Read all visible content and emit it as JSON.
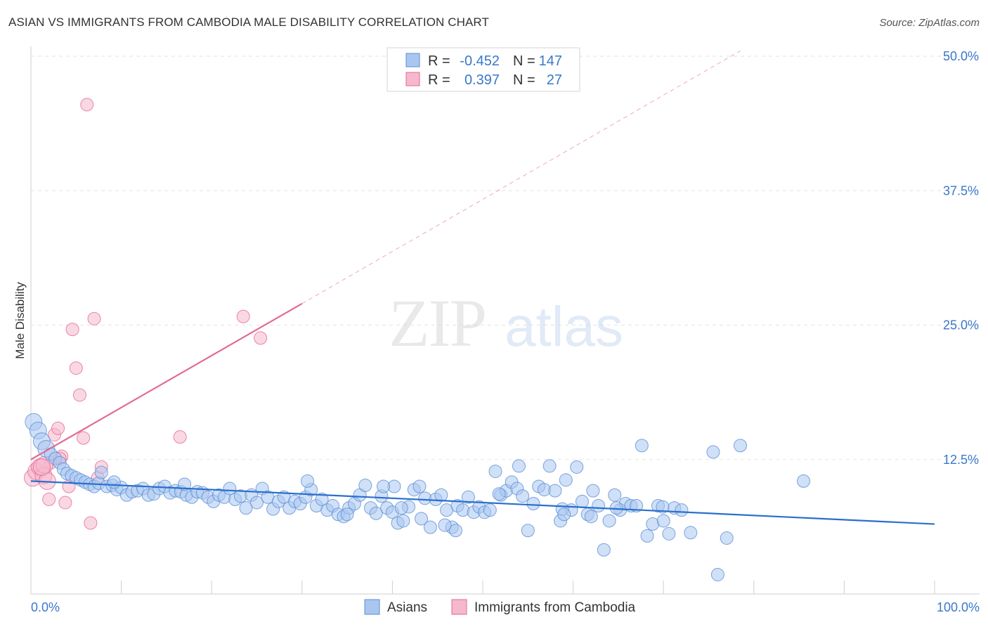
{
  "chart_data": {
    "type": "scatter",
    "title": "ASIAN VS IMMIGRANTS FROM CAMBODIA MALE DISABILITY CORRELATION CHART",
    "source": "Source: ZipAtlas.com",
    "xlabel": "",
    "ylabel": "Male Disability",
    "xlim": [
      0,
      100
    ],
    "ylim": [
      0,
      50
    ],
    "x_tick_labels": [
      "0.0%",
      "100.0%"
    ],
    "y_ticks": [
      12.5,
      25.0,
      37.5,
      50.0
    ],
    "y_tick_labels": [
      "12.5%",
      "25.0%",
      "37.5%",
      "50.0%"
    ],
    "grid": true,
    "watermark": "ZIPatlas",
    "colors": {
      "asians": "#5b8fd6",
      "asians_fill": "#a9c6f0",
      "cambodia": "#e36a94",
      "cambodia_fill": "#f6b8cc",
      "asians_line": "#2a6fcc",
      "cambodia_line": "#e36a94",
      "axis_text": "#3a78c9"
    },
    "legend": {
      "position": "top-center",
      "rows": [
        {
          "r_label": "R =",
          "r_value": "-0.452",
          "n_label": "N =",
          "n_value": "147"
        },
        {
          "r_label": "R =",
          "r_value": "0.397",
          "n_label": "N =",
          "n_value": "27"
        }
      ]
    },
    "bottom_legend": [
      "Asians",
      "Immigrants from Cambodia"
    ],
    "series": [
      {
        "name": "Asians",
        "trend": {
          "x0": 0,
          "y0": 10.5,
          "x1": 100,
          "y1": 6.5
        },
        "points": [
          [
            0.3,
            16.0
          ],
          [
            0.8,
            15.2
          ],
          [
            1.2,
            14.2
          ],
          [
            1.7,
            13.5
          ],
          [
            2.2,
            13.0
          ],
          [
            2.7,
            12.6
          ],
          [
            3.2,
            12.2
          ],
          [
            3.6,
            11.6
          ],
          [
            4.0,
            11.2
          ],
          [
            4.5,
            11.0
          ],
          [
            5.0,
            10.8
          ],
          [
            5.5,
            10.6
          ],
          [
            6.0,
            10.4
          ],
          [
            6.5,
            10.2
          ],
          [
            7.0,
            10.0
          ],
          [
            7.5,
            10.3
          ],
          [
            7.8,
            11.3
          ],
          [
            8.4,
            10.0
          ],
          [
            9.0,
            10.1
          ],
          [
            9.5,
            9.7
          ],
          [
            10.0,
            9.9
          ],
          [
            10.6,
            9.2
          ],
          [
            11.2,
            9.5
          ],
          [
            11.8,
            9.6
          ],
          [
            12.4,
            9.8
          ],
          [
            13.0,
            9.2
          ],
          [
            13.6,
            9.3
          ],
          [
            14.2,
            9.8
          ],
          [
            14.8,
            10.0
          ],
          [
            15.4,
            9.4
          ],
          [
            16.0,
            9.6
          ],
          [
            16.6,
            9.5
          ],
          [
            17.2,
            9.2
          ],
          [
            17.8,
            9.0
          ],
          [
            18.4,
            9.5
          ],
          [
            19.0,
            9.4
          ],
          [
            19.6,
            9.0
          ],
          [
            20.2,
            8.6
          ],
          [
            20.8,
            9.2
          ],
          [
            21.4,
            9.0
          ],
          [
            22.0,
            9.8
          ],
          [
            22.6,
            8.8
          ],
          [
            23.2,
            9.1
          ],
          [
            23.8,
            8.0
          ],
          [
            24.4,
            9.2
          ],
          [
            25.0,
            8.5
          ],
          [
            25.6,
            9.8
          ],
          [
            26.2,
            9.0
          ],
          [
            26.8,
            7.9
          ],
          [
            27.4,
            8.6
          ],
          [
            28.0,
            9.0
          ],
          [
            28.6,
            8.0
          ],
          [
            29.2,
            8.6
          ],
          [
            29.8,
            8.4
          ],
          [
            30.4,
            9.0
          ],
          [
            31.0,
            9.7
          ],
          [
            31.6,
            8.2
          ],
          [
            32.2,
            8.8
          ],
          [
            32.8,
            7.8
          ],
          [
            33.4,
            8.2
          ],
          [
            34.0,
            7.4
          ],
          [
            34.6,
            7.2
          ],
          [
            35.2,
            8.0
          ],
          [
            35.8,
            8.4
          ],
          [
            36.4,
            9.2
          ],
          [
            37.0,
            10.1
          ],
          [
            37.6,
            8.0
          ],
          [
            38.2,
            7.5
          ],
          [
            38.8,
            9.1
          ],
          [
            39.4,
            8.0
          ],
          [
            40.0,
            7.6
          ],
          [
            40.6,
            6.6
          ],
          [
            41.2,
            6.8
          ],
          [
            41.8,
            8.1
          ],
          [
            42.4,
            9.7
          ],
          [
            43.0,
            10.0
          ],
          [
            43.6,
            8.9
          ],
          [
            44.2,
            6.2
          ],
          [
            44.8,
            8.8
          ],
          [
            45.4,
            9.2
          ],
          [
            46.0,
            7.8
          ],
          [
            46.6,
            6.2
          ],
          [
            47.2,
            8.2
          ],
          [
            47.8,
            7.8
          ],
          [
            48.4,
            9.0
          ],
          [
            49.0,
            7.6
          ],
          [
            49.6,
            8.1
          ],
          [
            50.2,
            7.6
          ],
          [
            50.8,
            7.8
          ],
          [
            51.4,
            11.4
          ],
          [
            52.0,
            9.2
          ],
          [
            52.6,
            9.6
          ],
          [
            53.2,
            10.4
          ],
          [
            53.8,
            9.8
          ],
          [
            54.4,
            9.1
          ],
          [
            55.0,
            5.9
          ],
          [
            55.6,
            8.4
          ],
          [
            56.2,
            10.0
          ],
          [
            56.8,
            9.7
          ],
          [
            57.4,
            11.9
          ],
          [
            58.0,
            9.6
          ],
          [
            58.6,
            6.8
          ],
          [
            59.2,
            10.6
          ],
          [
            59.8,
            7.8
          ],
          [
            60.4,
            11.8
          ],
          [
            61.0,
            8.6
          ],
          [
            61.6,
            7.4
          ],
          [
            62.2,
            9.6
          ],
          [
            62.8,
            8.2
          ],
          [
            63.4,
            4.1
          ],
          [
            64.0,
            6.8
          ],
          [
            64.6,
            9.2
          ],
          [
            65.2,
            7.8
          ],
          [
            65.8,
            8.4
          ],
          [
            66.4,
            8.2
          ],
          [
            67.0,
            8.2
          ],
          [
            67.6,
            13.8
          ],
          [
            68.2,
            5.4
          ],
          [
            68.8,
            6.5
          ],
          [
            69.4,
            8.2
          ],
          [
            70.0,
            6.8
          ],
          [
            70.6,
            5.6
          ],
          [
            71.2,
            8.0
          ],
          [
            73.0,
            5.7
          ],
          [
            75.5,
            13.2
          ],
          [
            77.0,
            5.2
          ],
          [
            78.5,
            13.8
          ],
          [
            85.5,
            10.5
          ],
          [
            76.0,
            1.8
          ],
          [
            58.8,
            7.9
          ],
          [
            47.0,
            5.9
          ],
          [
            35.0,
            7.4
          ],
          [
            41.0,
            8.0
          ],
          [
            62.0,
            7.2
          ],
          [
            54.0,
            11.9
          ],
          [
            59.0,
            7.4
          ],
          [
            64.8,
            8.0
          ],
          [
            69.9,
            8.1
          ],
          [
            72.0,
            7.8
          ],
          [
            40.2,
            10.0
          ],
          [
            45.8,
            6.4
          ],
          [
            39.0,
            10.0
          ],
          [
            51.8,
            9.3
          ],
          [
            43.2,
            7.0
          ],
          [
            30.6,
            10.5
          ],
          [
            17.0,
            10.2
          ],
          [
            9.2,
            10.4
          ]
        ]
      },
      {
        "name": "Immigrants from Cambodia",
        "trend": {
          "x0": 0,
          "y0": 12.5,
          "x1": 30,
          "y1": 27.0
        },
        "trend_extension": {
          "x0": 30,
          "y0": 27.0,
          "x1": 78.5,
          "y1": 50.5
        },
        "points": [
          [
            0.2,
            10.8
          ],
          [
            0.6,
            11.4
          ],
          [
            1.0,
            11.8
          ],
          [
            1.4,
            11.0
          ],
          [
            1.8,
            10.5
          ],
          [
            2.2,
            12.2
          ],
          [
            2.6,
            14.8
          ],
          [
            3.0,
            15.4
          ],
          [
            3.4,
            12.8
          ],
          [
            3.8,
            8.5
          ],
          [
            4.2,
            10.0
          ],
          [
            4.6,
            24.6
          ],
          [
            5.0,
            21.0
          ],
          [
            5.4,
            18.5
          ],
          [
            5.8,
            14.5
          ],
          [
            6.2,
            45.5
          ],
          [
            6.6,
            6.6
          ],
          [
            7.0,
            25.6
          ],
          [
            7.4,
            10.8
          ],
          [
            7.8,
            11.8
          ],
          [
            16.5,
            14.6
          ],
          [
            23.5,
            25.8
          ],
          [
            25.4,
            23.8
          ],
          [
            1.5,
            12.0
          ],
          [
            2.0,
            8.8
          ],
          [
            3.2,
            12.6
          ],
          [
            1.2,
            11.8
          ]
        ]
      }
    ]
  }
}
